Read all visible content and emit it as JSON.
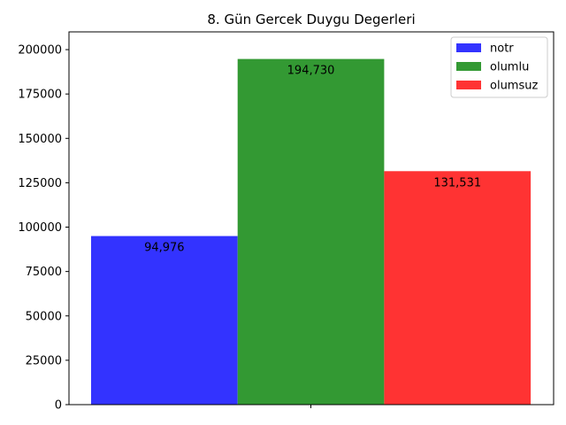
{
  "chart_data": {
    "type": "bar",
    "title": "8. Gün Gercek Duygu Degerleri",
    "xlabel": "",
    "ylabel": "",
    "ylim": [
      0,
      210000
    ],
    "yticks": [
      0,
      25000,
      50000,
      75000,
      100000,
      125000,
      150000,
      175000,
      200000
    ],
    "ytick_labels": [
      "0",
      "25000",
      "50000",
      "75000",
      "100000",
      "125000",
      "150000",
      "175000",
      "200000"
    ],
    "legend_position": "top-right",
    "grid": false,
    "series": [
      {
        "name": "notr",
        "value": 94976,
        "label": "94,976",
        "color": "#3333ff"
      },
      {
        "name": "olumlu",
        "value": 194730,
        "label": "194,730",
        "color": "#339933"
      },
      {
        "name": "olumsuz",
        "value": 131531,
        "label": "131,531",
        "color": "#ff3333"
      }
    ]
  }
}
